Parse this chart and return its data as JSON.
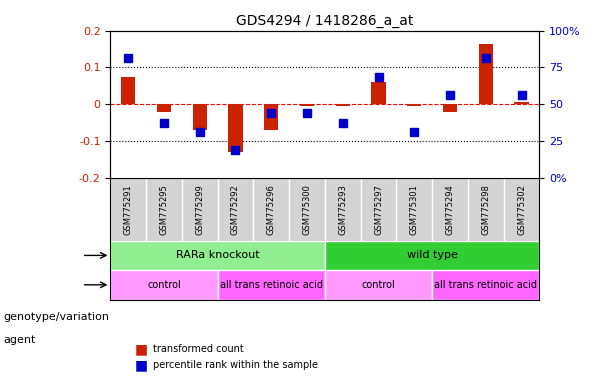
{
  "title": "GDS4294 / 1418286_a_at",
  "samples": [
    "GSM775291",
    "GSM775295",
    "GSM775299",
    "GSM775292",
    "GSM775296",
    "GSM775300",
    "GSM775293",
    "GSM775297",
    "GSM775301",
    "GSM775294",
    "GSM775298",
    "GSM775302"
  ],
  "red_values": [
    0.075,
    -0.02,
    -0.07,
    -0.13,
    -0.07,
    -0.005,
    -0.005,
    0.06,
    -0.005,
    -0.02,
    0.165,
    0.005
  ],
  "blue_values": [
    0.8125,
    0.375,
    0.3125,
    0.1875,
    0.4375,
    0.4375,
    0.375,
    0.6875,
    0.3125,
    0.5625,
    0.8125,
    0.5625
  ],
  "ylim_left": [
    -0.2,
    0.2
  ],
  "ylim_right": [
    0,
    1.0
  ],
  "yticks_left": [
    -0.2,
    -0.1,
    0.0,
    0.1,
    0.2
  ],
  "yticks_right": [
    0,
    0.25,
    0.5,
    0.75,
    1.0
  ],
  "ytick_labels_left": [
    "-0.2",
    "-0.1",
    "0",
    "0.1",
    "0.2"
  ],
  "ytick_labels_right": [
    "0%",
    "25",
    "50",
    "75",
    "100%"
  ],
  "hlines": [
    0.1,
    0.0,
    -0.1
  ],
  "hline_styles": [
    "dotted",
    "dashed",
    "dotted"
  ],
  "hline_colors": [
    "black",
    "red",
    "black"
  ],
  "bar_width": 0.4,
  "blue_marker_size": 6,
  "genotype_groups": [
    {
      "label": "RARa knockout",
      "start": 0,
      "end": 6,
      "color": "#90EE90"
    },
    {
      "label": "wild type",
      "start": 6,
      "end": 12,
      "color": "#32CD32"
    }
  ],
  "agent_groups": [
    {
      "label": "control",
      "start": 0,
      "end": 3,
      "color": "#FF99FF"
    },
    {
      "label": "all trans retinoic acid",
      "start": 3,
      "end": 6,
      "color": "#FF66FF"
    },
    {
      "label": "control",
      "start": 6,
      "end": 9,
      "color": "#FF99FF"
    },
    {
      "label": "all trans retinoic acid",
      "start": 9,
      "end": 12,
      "color": "#FF66FF"
    }
  ],
  "legend_items": [
    {
      "label": "transformed count",
      "color": "#CC0000"
    },
    {
      "label": "percentile rank within the sample",
      "color": "#0000CC"
    }
  ],
  "left_labels": [
    "genotype/variation",
    "agent"
  ],
  "red_color": "#CC2200",
  "blue_color": "#0000CC",
  "bg_color": "#FFFFFF",
  "plot_bg_color": "#FFFFFF",
  "grid_color": "#CCCCCC"
}
